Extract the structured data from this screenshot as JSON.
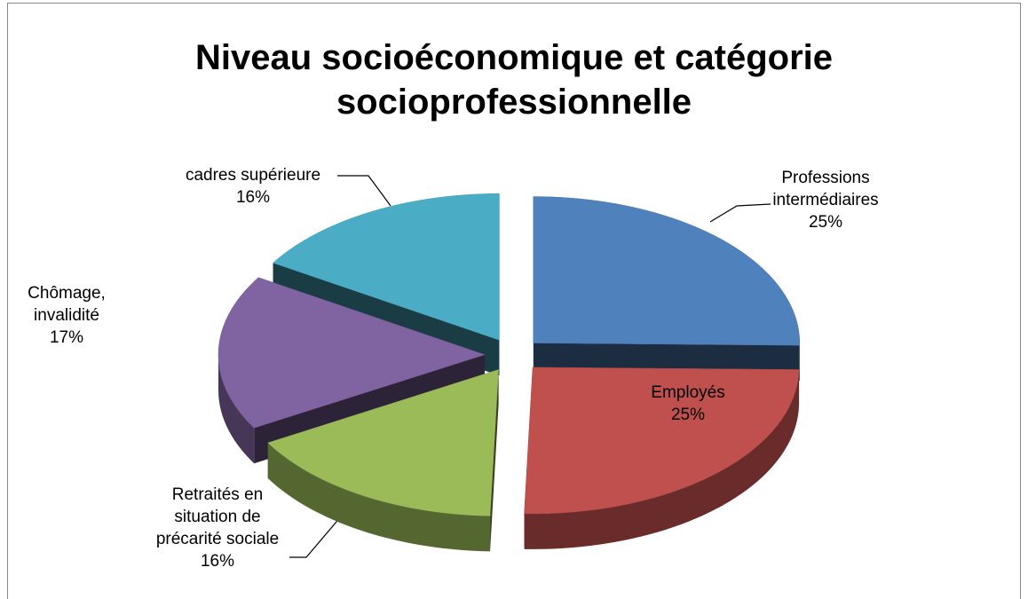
{
  "chart_data": {
    "type": "pie3d",
    "title": "Niveau socioéconomique et catégorie socioprofessionnelle",
    "categories": [
      "Professions intermédiaires",
      "Employés",
      "Retraités en situation de précarité sociale",
      "Chômage, invalidité",
      "cadres supérieure"
    ],
    "values": [
      25,
      25,
      16,
      17,
      16
    ],
    "value_labels": [
      "25%",
      "25%",
      "16%",
      "17%",
      "16%"
    ],
    "colors": [
      "#4f81bd",
      "#c0504d",
      "#9bbb59",
      "#8064a2",
      "#4bacc6"
    ]
  }
}
